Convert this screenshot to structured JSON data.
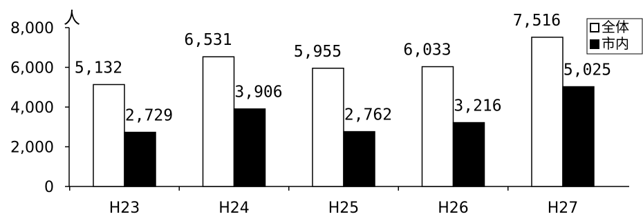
{
  "chart_data": {
    "type": "bar",
    "categories": [
      "H23",
      "H24",
      "H25",
      "H26",
      "H27"
    ],
    "series": [
      {
        "name": "全体",
        "values": [
          5132,
          6531,
          5955,
          6033,
          7516
        ],
        "labels": [
          "5,132",
          "6,531",
          "5,955",
          "6,033",
          "7,516"
        ],
        "color": "#ffffff"
      },
      {
        "name": "市内",
        "values": [
          2729,
          3906,
          2762,
          3216,
          5025
        ],
        "labels": [
          "2,729",
          "3,906",
          "2,762",
          "3,216",
          "5,025"
        ],
        "color": "#000000"
      }
    ],
    "ylabel": "人",
    "ylim": [
      0,
      8000
    ],
    "yticks": [
      0,
      2000,
      4000,
      6000,
      8000
    ],
    "ytick_labels": [
      "0",
      "2,000",
      "4,000",
      "6,000",
      "8,000"
    ],
    "grid": false,
    "legend": "top-right"
  }
}
